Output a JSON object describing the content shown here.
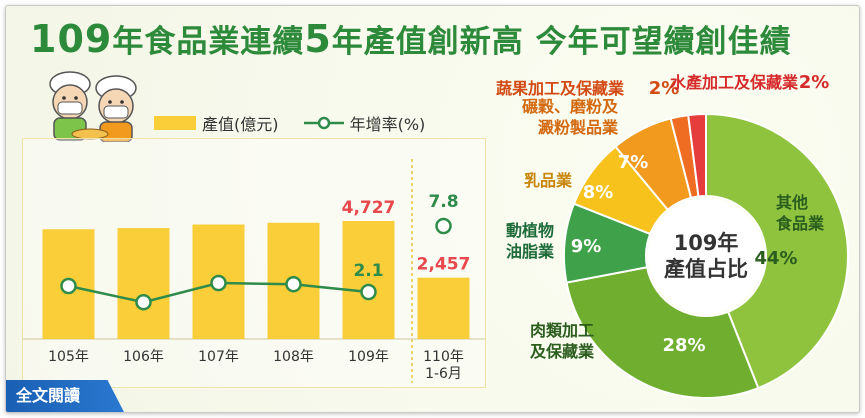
{
  "title": {
    "part1": "109",
    "part2": "年食品業連續",
    "part3": "5",
    "part4": "年產值創新高  今年可望續創佳績"
  },
  "legend": {
    "bar_label": "產值(億元)",
    "line_label": "年增率(%)"
  },
  "read_all": "全文閱讀",
  "colors": {
    "title": "#2c8a3a",
    "bar": "#f9ce38",
    "line": "#2e8b4a",
    "value_red": "#e8474c",
    "readall": "#1a5fb4"
  },
  "chart_data": [
    {
      "type": "bar",
      "categories": [
        "105年",
        "106年",
        "107年",
        "108年",
        "109年",
        "110年\n1-6月"
      ],
      "series": [
        {
          "name": "產值(億元)",
          "values": [
            null,
            null,
            null,
            null,
            4727,
            2457
          ]
        },
        {
          "name": "年增率(%)",
          "type": "line",
          "values": [
            null,
            null,
            null,
            null,
            2.1,
            7.8
          ]
        }
      ],
      "data_labels": {
        "bar": [
          "",
          "",
          "",
          "",
          "4,727",
          "2,457"
        ],
        "line": [
          "",
          "",
          "",
          "",
          "2.1",
          "7.8"
        ]
      }
    },
    {
      "type": "pie",
      "title": "109年產值占比",
      "center_label": [
        "109年",
        "產值占比"
      ],
      "slices": [
        {
          "label": "其他食品業",
          "value": 44,
          "text": "44%",
          "color": "#8fc33e"
        },
        {
          "label": "肉類加工及保藏業",
          "value": 28,
          "text": "28%",
          "color": "#6fae2e"
        },
        {
          "label": "動植物油脂業",
          "value": 9,
          "text": "9%",
          "color": "#3fa24a"
        },
        {
          "label": "乳品業",
          "value": 8,
          "text": "8%",
          "color": "#f6c21b"
        },
        {
          "label": "碾穀、磨粉及澱粉製品業",
          "value": 7,
          "text": "7%",
          "color": "#f29a1d"
        },
        {
          "label": "蔬果加工及保藏業",
          "value": 2,
          "text": "2%",
          "color": "#ee6d23"
        },
        {
          "label": "水產加工及保藏業",
          "value": 2,
          "text": "2%",
          "color": "#e53c3c"
        }
      ]
    }
  ]
}
